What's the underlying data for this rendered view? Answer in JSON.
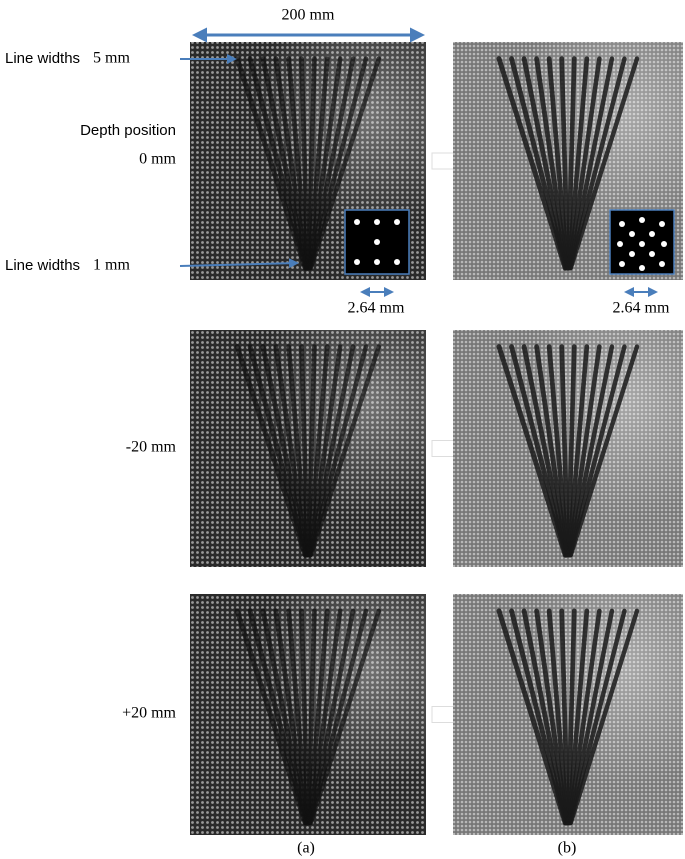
{
  "header": {
    "scale": "200 mm"
  },
  "annotations": {
    "top_label": "Line widths",
    "top_width": "5 mm",
    "depth_label": "Depth position",
    "bottom_label": "Line widths",
    "bottom_width": "1 mm"
  },
  "insets": [
    "2.64 mm",
    "2.64 mm"
  ],
  "rows": [
    {
      "depth": "0 mm"
    },
    {
      "depth": "-20 mm"
    },
    {
      "depth": "+20 mm"
    }
  ],
  "columns": [
    "(a)",
    "(b)"
  ]
}
